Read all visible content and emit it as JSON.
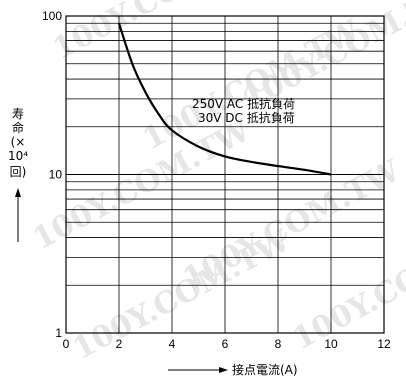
{
  "chart_data": {
    "type": "line",
    "xlabel": "接点電流(A)",
    "ylabel_chars": [
      "寿",
      "命",
      "(×",
      "10⁴",
      "回)"
    ],
    "x_ticks": [
      0,
      2,
      4,
      6,
      8,
      10,
      12
    ],
    "y_ticks": [
      1,
      10,
      100
    ],
    "xlim": [
      0,
      12
    ],
    "ylim": [
      1,
      100
    ],
    "y_scale": "log",
    "grid": true,
    "annotation_lines": [
      "250V AC 抵抗負荷",
      "30V DC 抵抗負荷"
    ],
    "series": [
      {
        "x": [
          2,
          2.5,
          3,
          3.5,
          4,
          5,
          6,
          7,
          8,
          9,
          10
        ],
        "values": [
          90,
          50,
          33,
          24,
          19,
          15,
          13,
          12,
          11.3,
          10.7,
          10
        ]
      }
    ]
  },
  "watermark": "100Y.COM.TW"
}
